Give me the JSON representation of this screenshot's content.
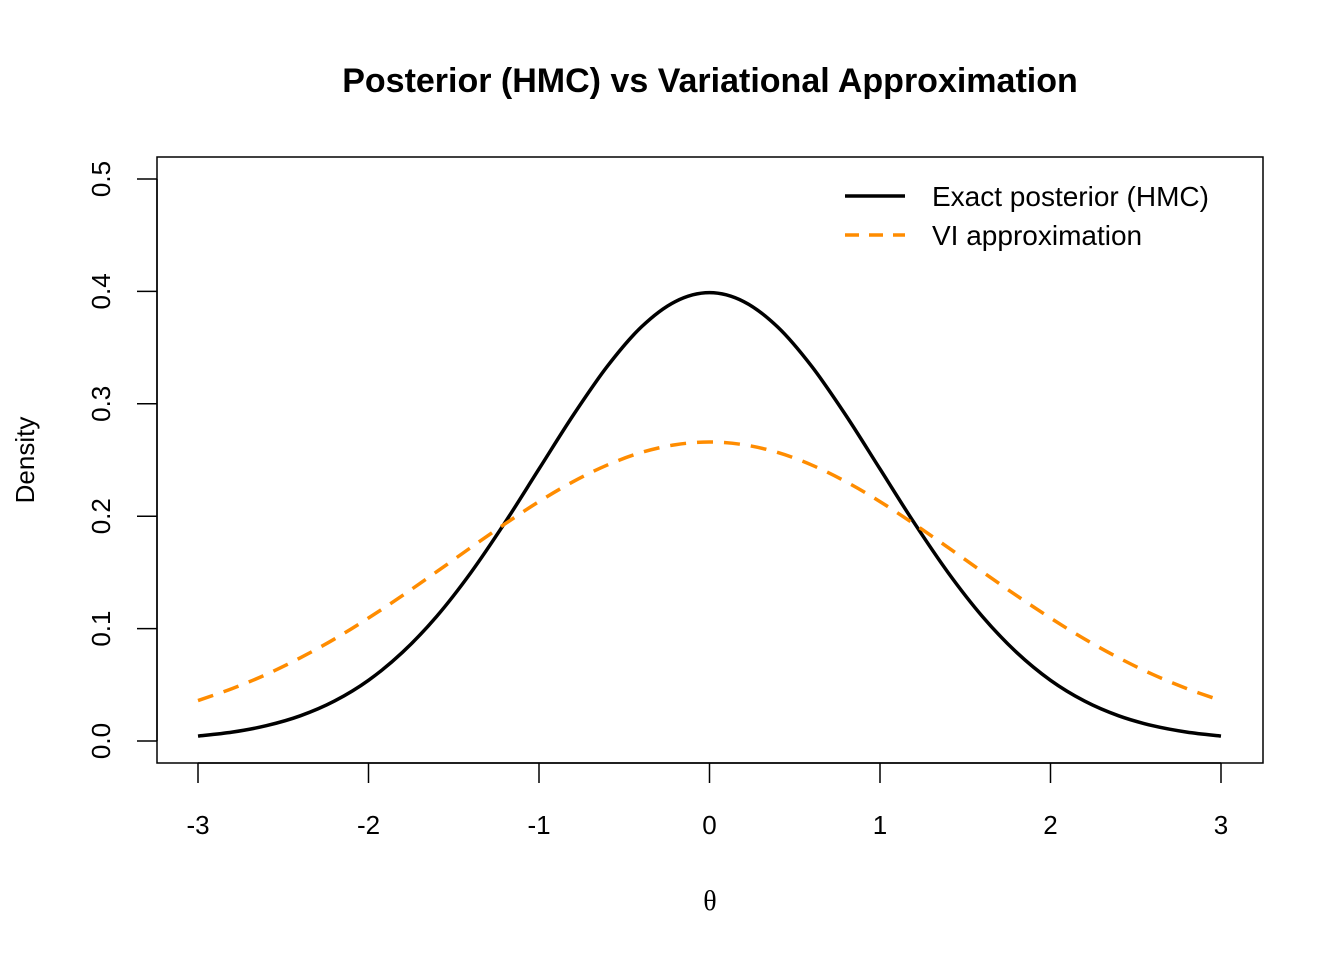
{
  "chart_data": {
    "type": "line",
    "title": "Posterior (HMC) vs Variational Approximation",
    "xlabel": "θ",
    "ylabel": "Density",
    "xlim": [
      -3,
      3
    ],
    "ylim": [
      0,
      0.5
    ],
    "xticks": [
      "-3",
      "-2",
      "-1",
      "0",
      "1",
      "2",
      "3"
    ],
    "yticks": [
      "0.0",
      "0.1",
      "0.2",
      "0.3",
      "0.4",
      "0.5"
    ],
    "grid": false,
    "legend_position": "top-right",
    "x": [
      -3.0,
      -2.8,
      -2.6,
      -2.4,
      -2.2,
      -2.0,
      -1.8,
      -1.6,
      -1.4,
      -1.2,
      -1.0,
      -0.8,
      -0.6,
      -0.4,
      -0.2,
      0.0,
      0.2,
      0.4,
      0.6,
      0.8,
      1.0,
      1.2,
      1.4,
      1.6,
      1.8,
      2.0,
      2.2,
      2.4,
      2.6,
      2.8,
      3.0
    ],
    "series": [
      {
        "name": "Exact posterior (HMC)",
        "color": "#000000",
        "dash": "solid",
        "values": [
          0.0044,
          0.0079,
          0.0136,
          0.0224,
          0.0355,
          0.054,
          0.079,
          0.1109,
          0.1497,
          0.1942,
          0.242,
          0.2897,
          0.3332,
          0.3683,
          0.391,
          0.3989,
          0.391,
          0.3683,
          0.3332,
          0.2897,
          0.242,
          0.1942,
          0.1497,
          0.1109,
          0.079,
          0.054,
          0.0355,
          0.0224,
          0.0136,
          0.0079,
          0.0044
        ]
      },
      {
        "name": "VI approximation",
        "color": "#FF8C00",
        "dash": "dashed",
        "values": [
          0.036,
          0.0466,
          0.0592,
          0.074,
          0.0907,
          0.1094,
          0.1295,
          0.1506,
          0.1721,
          0.1931,
          0.213,
          0.2307,
          0.2455,
          0.2567,
          0.2636,
          0.266,
          0.2636,
          0.2567,
          0.2455,
          0.2307,
          0.213,
          0.1931,
          0.1721,
          0.1506,
          0.1295,
          0.1094,
          0.0907,
          0.074,
          0.0592,
          0.0466,
          0.036
        ]
      }
    ]
  }
}
